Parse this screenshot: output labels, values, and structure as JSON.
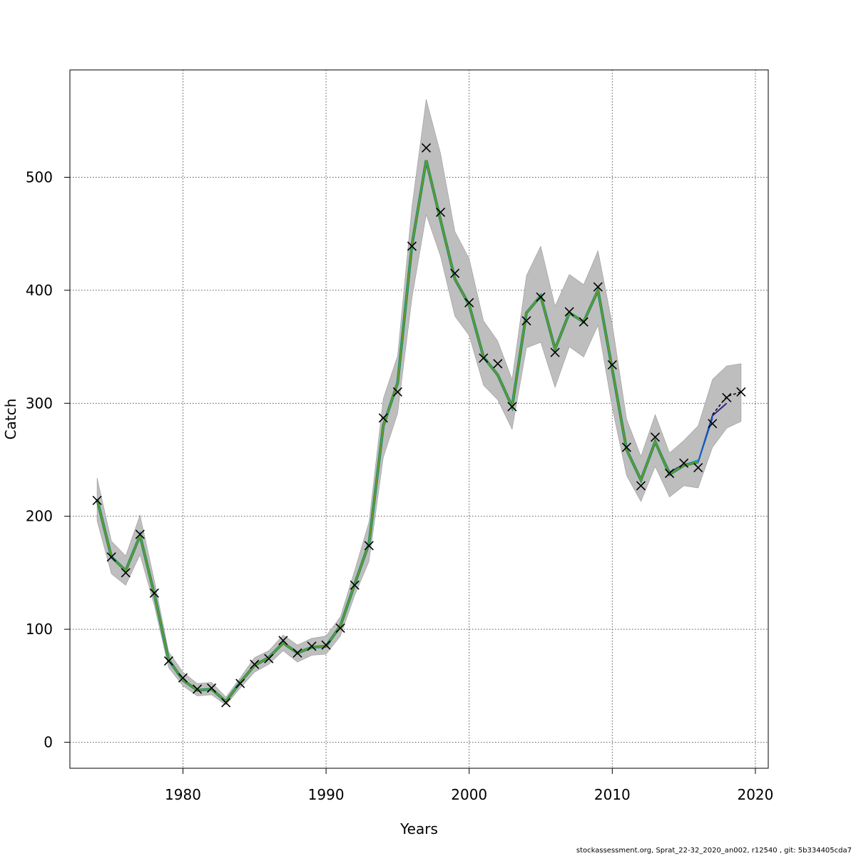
{
  "chart_data": {
    "type": "line",
    "title": "",
    "xlabel": "Years",
    "ylabel": "Catch",
    "xlim": [
      1972.1,
      2020.9
    ],
    "ylim": [
      -23,
      595
    ],
    "xticks": [
      1980,
      1990,
      2000,
      2010,
      2020
    ],
    "yticks": [
      0,
      100,
      200,
      300,
      400,
      500
    ],
    "grid": true,
    "observed": {
      "x": [
        1974,
        1975,
        1976,
        1977,
        1978,
        1979,
        1980,
        1981,
        1982,
        1983,
        1984,
        1985,
        1986,
        1987,
        1988,
        1989,
        1990,
        1991,
        1992,
        1993,
        1994,
        1995,
        1996,
        1997,
        1998,
        1999,
        2000,
        2001,
        2002,
        2003,
        2004,
        2005,
        2006,
        2007,
        2008,
        2009,
        2010,
        2011,
        2012,
        2013,
        2014,
        2015,
        2016,
        2017,
        2018,
        2019
      ],
      "y": [
        214,
        164,
        150,
        184,
        132,
        72,
        57,
        47,
        48,
        35,
        52,
        69,
        74,
        90,
        79,
        85,
        86,
        101,
        139,
        174,
        287,
        310,
        439,
        526,
        469,
        415,
        389,
        340,
        335,
        297,
        373,
        394,
        345,
        381,
        372,
        403,
        334,
        261,
        227,
        270,
        238,
        247,
        243,
        282,
        305,
        310
      ]
    },
    "estimate": {
      "x": [
        1974,
        1975,
        1976,
        1977,
        1978,
        1979,
        1980,
        1981,
        1982,
        1983,
        1984,
        1985,
        1986,
        1987,
        1988,
        1989,
        1990,
        1991,
        1992,
        1993,
        1994,
        1995,
        1996,
        1997,
        1998,
        1999,
        2000,
        2001,
        2002,
        2003,
        2004,
        2005,
        2006,
        2007,
        2008,
        2009,
        2010,
        2011,
        2012,
        2013,
        2014,
        2015,
        2016
      ],
      "y": [
        215,
        164,
        152,
        183,
        131,
        73,
        55,
        46,
        47,
        36,
        53,
        68,
        75,
        88,
        79,
        84,
        85,
        103,
        140,
        176,
        280,
        318,
        440,
        515,
        462,
        410,
        387,
        341,
        325,
        297,
        380,
        395,
        348,
        380,
        372,
        400,
        330,
        259,
        232,
        266,
        237,
        245,
        248
      ]
    },
    "band": {
      "x": [
        1974,
        1975,
        1976,
        1977,
        1978,
        1979,
        1980,
        1981,
        1982,
        1983,
        1984,
        1985,
        1986,
        1987,
        1988,
        1989,
        1990,
        1991,
        1992,
        1993,
        1994,
        1995,
        1996,
        1997,
        1998,
        1999,
        2000,
        2001,
        2002,
        2003,
        2004,
        2005,
        2006,
        2007,
        2008,
        2009,
        2010,
        2011,
        2012,
        2013,
        2014,
        2015,
        2016,
        2017,
        2018,
        2019
      ],
      "upper": [
        234,
        178,
        165,
        201,
        143,
        80,
        62,
        52,
        53,
        40,
        57,
        75,
        81,
        95,
        86,
        92,
        94,
        111,
        152,
        195,
        304,
        342,
        474,
        569,
        521,
        452,
        428,
        373,
        355,
        321,
        413,
        439,
        386,
        414,
        405,
        435,
        370,
        286,
        253,
        290,
        256,
        267,
        280,
        321,
        333,
        335
      ],
      "lower": [
        196,
        149,
        139,
        166,
        121,
        66,
        50,
        41,
        42,
        33,
        48,
        62,
        69,
        81,
        71,
        77,
        78,
        94,
        130,
        160,
        252,
        291,
        393,
        467,
        430,
        377,
        360,
        316,
        303,
        277,
        349,
        354,
        314,
        350,
        341,
        369,
        296,
        236,
        213,
        244,
        217,
        227,
        225,
        261,
        278,
        284
      ]
    },
    "retro_series": [
      {
        "x": [
          2012,
          2013,
          2014,
          2015,
          2016,
          2017,
          2018
        ],
        "y": [
          232,
          266,
          239,
          246,
          248,
          289,
          300
        ],
        "color": "#2f2a93"
      },
      {
        "x": [
          2012,
          2013,
          2014,
          2015,
          2016,
          2017
        ],
        "y": [
          232,
          266,
          238,
          245,
          248,
          287
        ],
        "color": "#1060c8"
      },
      {
        "x": [
          2012,
          2013,
          2014,
          2015,
          2016
        ],
        "y": [
          232,
          266,
          237,
          245,
          250
        ],
        "color": "#2ab3d1"
      },
      {
        "x": [
          2012,
          2013,
          2014,
          2015
        ],
        "y": [
          232,
          266,
          236,
          245
        ],
        "color": "#7fd6c9"
      },
      {
        "x": [
          2012,
          2013,
          2014
        ],
        "y": [
          232,
          266,
          240
        ],
        "color": "#4ab06e"
      }
    ],
    "forecast": {
      "x": [
        2017,
        2018,
        2019
      ],
      "y": [
        290,
        306,
        310
      ]
    },
    "colors": {
      "band": "#bebebe",
      "estimate": "#6a9a22",
      "estimate_outline": "#1c8c74",
      "markers": "#000000",
      "grid": "#555555"
    }
  },
  "footer": "stockassessment.org, Sprat_22-32_2020_an002, r12540 , git: 5b334405cda7"
}
